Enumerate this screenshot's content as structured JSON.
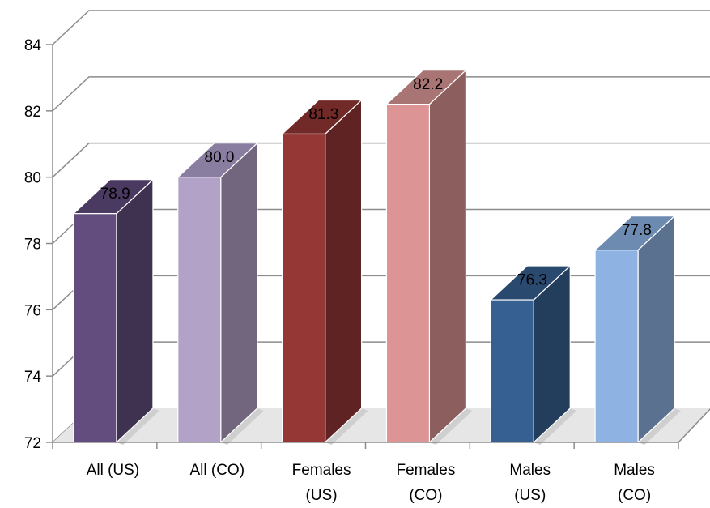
{
  "chart_data": {
    "type": "bar",
    "style": "3d-column",
    "title": "",
    "xlabel": "",
    "ylabel": "",
    "ylim": [
      72,
      84
    ],
    "yticks": [
      "72",
      "74",
      "76",
      "78",
      "80",
      "82",
      "84"
    ],
    "grid": true,
    "legend": "none",
    "categories": [
      [
        "All (US)"
      ],
      [
        "All (CO)"
      ],
      [
        "Females",
        "(US)"
      ],
      [
        "Females",
        "(CO)"
      ],
      [
        "Males",
        "(US)"
      ],
      [
        "Males",
        "(CO)"
      ]
    ],
    "values": [
      78.9,
      80.0,
      81.3,
      82.2,
      76.3,
      77.8
    ],
    "data_labels": [
      "78.9",
      "80.0",
      "81.3",
      "82.2",
      "76.3",
      "77.8"
    ],
    "colors": [
      {
        "front": "#634d7f",
        "side": "#3f3150",
        "top": "#4a3a62"
      },
      {
        "front": "#b2a2c8",
        "side": "#72667f",
        "top": "#8a7ea0"
      },
      {
        "front": "#953735",
        "side": "#5e2322",
        "top": "#722a28"
      },
      {
        "front": "#dc9594",
        "side": "#8c5e5e",
        "top": "#a87574"
      },
      {
        "front": "#376092",
        "side": "#233d5c",
        "top": "#2a496f"
      },
      {
        "front": "#8eb3e3",
        "side": "#5a718f",
        "top": "#6d8bb0"
      }
    ],
    "axis_color": "#8c8c8c",
    "grid_color": "#8c8c8c"
  }
}
